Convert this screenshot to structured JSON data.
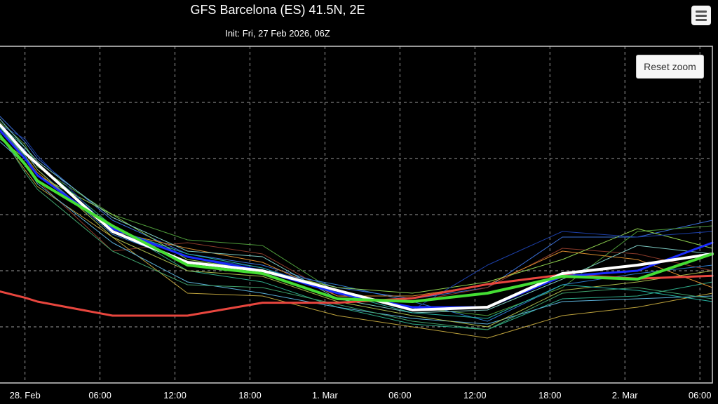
{
  "header": {
    "title": "GFS Barcelona (ES) 41.5N, 2E",
    "subtitle": "Init: Fri, 27 Feb 2026, 06Z"
  },
  "toolbar": {
    "menu_icon": "hamburger-menu-icon",
    "reset_zoom_label": "Reset zoom"
  },
  "chart_data": {
    "type": "line",
    "title": "GFS Barcelona (ES) 41.5N, 2E",
    "subtitle": "Init: Fri, 27 Feb 2026, 06Z",
    "x_ticks": [
      "28. Feb",
      "06:00",
      "12:00",
      "18:00",
      "1. Mar",
      "06:00",
      "12:00",
      "18:00",
      "2. Mar",
      "06:00"
    ],
    "x_tick_hours": [
      0,
      6,
      12,
      18,
      24,
      30,
      36,
      42,
      48,
      54
    ],
    "xlim": [
      -2,
      55
    ],
    "ylim": [
      0,
      6
    ],
    "y_gridlines": [
      1,
      2,
      3,
      4,
      5,
      6
    ],
    "grid": true,
    "background": "#000000",
    "x": [
      -2,
      0,
      1,
      7,
      13,
      19,
      25,
      31,
      37,
      43,
      49,
      55
    ],
    "series": [
      {
        "role": "control",
        "color": "#e8463e",
        "width": 3,
        "values": [
          1.63,
          1.52,
          1.45,
          1.2,
          1.2,
          1.43,
          1.43,
          1.51,
          1.76,
          1.93,
          1.86,
          1.91
        ]
      },
      {
        "role": "mean",
        "color": "#ffffff",
        "width": 4,
        "values": [
          4.6,
          4.1,
          3.9,
          2.7,
          2.15,
          2.0,
          1.65,
          1.3,
          1.35,
          1.95,
          2.1,
          2.3
        ]
      },
      {
        "role": "member",
        "color": "#44dd33",
        "width": 4,
        "values": [
          4.4,
          3.9,
          3.6,
          2.8,
          2.1,
          1.95,
          1.5,
          1.45,
          1.6,
          1.9,
          1.85,
          2.3
        ]
      },
      {
        "role": "member",
        "color": "#1a2bff",
        "width": 3,
        "values": [
          4.5,
          4.0,
          3.7,
          2.75,
          2.25,
          2.0,
          1.6,
          1.35,
          1.35,
          1.9,
          2.0,
          2.5
        ]
      },
      {
        "role": "member",
        "color": "#3a6fd8",
        "width": 1,
        "values": [
          4.75,
          4.3,
          4.0,
          2.9,
          2.3,
          2.1,
          1.7,
          1.5,
          1.7,
          2.6,
          2.6,
          2.9
        ]
      },
      {
        "role": "member",
        "color": "#8a3a2a",
        "width": 1,
        "values": [
          4.55,
          4.0,
          3.6,
          2.35,
          2.5,
          2.3,
          1.55,
          1.45,
          1.7,
          2.4,
          2.3,
          2.0
        ]
      },
      {
        "role": "member",
        "color": "#bda23c",
        "width": 1,
        "values": [
          4.4,
          3.8,
          3.5,
          2.6,
          1.6,
          1.55,
          1.2,
          1.0,
          0.8,
          1.2,
          1.35,
          1.6
        ]
      },
      {
        "role": "member",
        "color": "#2eaa88",
        "width": 1,
        "values": [
          4.6,
          4.2,
          3.9,
          2.8,
          2.0,
          1.8,
          1.35,
          1.05,
          0.95,
          1.5,
          1.55,
          1.8
        ]
      },
      {
        "role": "member",
        "color": "#4e9a3a",
        "width": 1,
        "values": [
          4.65,
          4.25,
          3.85,
          3.0,
          2.55,
          2.45,
          1.6,
          1.35,
          1.2,
          1.7,
          2.7,
          2.8
        ]
      },
      {
        "role": "member",
        "color": "#5bb0d8",
        "width": 1,
        "values": [
          4.3,
          3.9,
          3.55,
          2.5,
          1.8,
          1.6,
          1.35,
          1.15,
          1.05,
          1.45,
          1.5,
          1.55
        ]
      },
      {
        "role": "member",
        "color": "#2d78c8",
        "width": 1,
        "values": [
          4.55,
          4.15,
          3.8,
          2.65,
          2.15,
          2.0,
          1.75,
          1.45,
          1.1,
          1.75,
          1.95,
          2.1
        ]
      },
      {
        "role": "member",
        "color": "#8fd14f",
        "width": 1,
        "values": [
          4.35,
          4.0,
          3.7,
          3.0,
          2.2,
          2.0,
          1.7,
          1.6,
          1.8,
          2.2,
          2.75,
          2.4
        ]
      },
      {
        "role": "member",
        "color": "#d98b2e",
        "width": 1,
        "values": [
          4.5,
          4.05,
          3.75,
          2.7,
          2.4,
          2.15,
          1.55,
          1.55,
          1.75,
          2.35,
          2.2,
          1.7
        ]
      },
      {
        "role": "member",
        "color": "#1c3fa8",
        "width": 1,
        "values": [
          4.6,
          4.35,
          4.05,
          2.7,
          2.25,
          2.05,
          1.65,
          1.3,
          2.1,
          2.7,
          2.6,
          2.7
        ]
      },
      {
        "role": "member",
        "color": "#3fa06a",
        "width": 1,
        "values": [
          4.45,
          3.75,
          3.45,
          2.35,
          1.75,
          1.7,
          1.4,
          1.1,
          0.95,
          1.6,
          1.7,
          1.5
        ]
      },
      {
        "role": "member",
        "color": "#7cc9c1",
        "width": 1,
        "values": [
          4.7,
          4.2,
          3.95,
          2.95,
          2.35,
          2.25,
          1.5,
          1.25,
          1.3,
          1.85,
          2.45,
          2.3
        ]
      },
      {
        "role": "member",
        "color": "#a7b84a",
        "width": 1,
        "values": [
          4.5,
          4.1,
          3.8,
          2.6,
          2.0,
          1.9,
          1.45,
          1.2,
          1.0,
          1.65,
          1.8,
          2.0
        ]
      },
      {
        "role": "member",
        "color": "#25b3a3",
        "width": 1,
        "values": [
          4.55,
          4.05,
          3.7,
          2.75,
          2.3,
          2.05,
          1.6,
          1.25,
          1.15,
          1.75,
          1.65,
          1.45
        ]
      }
    ]
  }
}
